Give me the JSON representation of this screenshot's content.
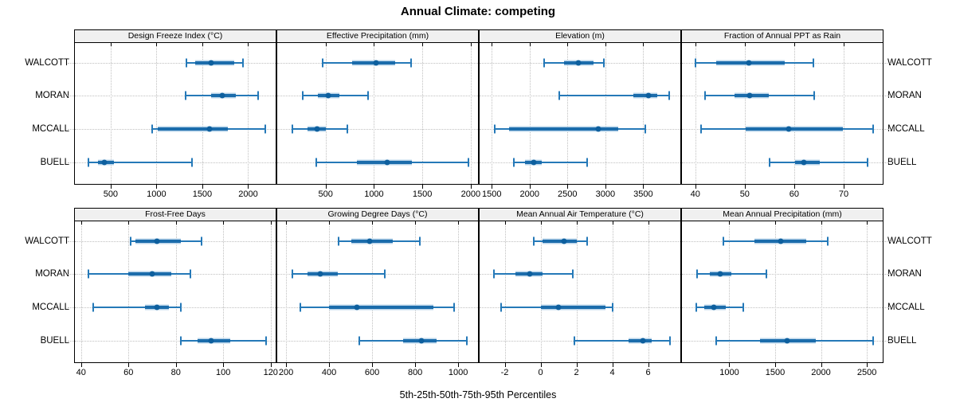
{
  "chart_data": {
    "type": "scatter",
    "subtype": "percentile-interval-dotplot",
    "title": "Annual Climate: competing",
    "caption": "5th-25th-50th-75th-95th Percentiles",
    "legend": "none",
    "grid": true,
    "accent_color": "#1f77b4",
    "sites": [
      "WALCOTT",
      "MORAN",
      "MCCALL",
      "BUELL"
    ],
    "percentiles": [
      5,
      25,
      50,
      75,
      95
    ],
    "panels": [
      {
        "title": "Design Freeze Index (°C)",
        "grid_row": 0,
        "grid_col": 0,
        "ticks": [
          500,
          1000,
          1500,
          2000
        ],
        "xlim": [
          110,
          2300
        ],
        "values": [
          [
            1325,
            1425,
            1595,
            1845,
            1940
          ],
          [
            1320,
            1595,
            1720,
            1865,
            2110
          ],
          [
            950,
            1010,
            1575,
            1775,
            2190
          ],
          [
            260,
            365,
            430,
            540,
            1385
          ]
        ]
      },
      {
        "title": "Effective Precipitation (mm)",
        "grid_row": 0,
        "grid_col": 1,
        "ticks": [
          500,
          1000,
          1500,
          2000
        ],
        "xlim": [
          0,
          2075
        ],
        "values": [
          [
            470,
            770,
            1025,
            1220,
            1380
          ],
          [
            260,
            420,
            530,
            640,
            940
          ],
          [
            155,
            310,
            410,
            500,
            725
          ],
          [
            400,
            820,
            1135,
            1390,
            1975
          ]
        ]
      },
      {
        "title": "Elevation (m)",
        "grid_row": 0,
        "grid_col": 2,
        "ticks": [
          1500,
          2000,
          2500,
          3000,
          3500
        ],
        "xlim": [
          1340,
          3990
        ],
        "values": [
          [
            2190,
            2455,
            2645,
            2840,
            2985
          ],
          [
            2390,
            3370,
            3565,
            3680,
            3845
          ],
          [
            1540,
            1730,
            2905,
            3175,
            3525
          ],
          [
            1790,
            1940,
            2060,
            2160,
            2760
          ]
        ]
      },
      {
        "title": "Fraction of Annual PPT as Rain",
        "grid_row": 0,
        "grid_col": 3,
        "ticks": [
          40,
          50,
          60,
          70
        ],
        "xlim": [
          37.3,
          77.9
        ],
        "values": [
          [
            40,
            44.2,
            50.8,
            58.1,
            63.9
          ],
          [
            42,
            48,
            51,
            54.9,
            64
          ],
          [
            41.1,
            50.2,
            58.9,
            69.9,
            75.9
          ],
          [
            55,
            60.1,
            62,
            65.1,
            74.9
          ]
        ]
      },
      {
        "title": "Frost-Free Days",
        "grid_row": 1,
        "grid_col": 0,
        "ticks": [
          40,
          60,
          80,
          100,
          120
        ],
        "xlim": [
          37.4,
          122.1
        ],
        "values": [
          [
            61,
            63,
            72,
            82,
            91
          ],
          [
            43,
            60,
            70,
            78,
            86
          ],
          [
            45,
            67,
            72,
            77,
            82
          ],
          [
            82,
            89,
            95,
            103,
            118
          ]
        ]
      },
      {
        "title": "Growing Degree Days (°C)",
        "grid_row": 1,
        "grid_col": 1,
        "ticks": [
          200,
          400,
          600,
          800,
          1000
        ],
        "xlim": [
          159,
          1092
        ],
        "values": [
          [
            445,
            505,
            590,
            695,
            820
          ],
          [
            230,
            300,
            360,
            440,
            660
          ],
          [
            265,
            400,
            530,
            885,
            980
          ],
          [
            540,
            745,
            830,
            900,
            1040
          ]
        ]
      },
      {
        "title": "Mean Annual Air Temperature (°C)",
        "grid_row": 1,
        "grid_col": 2,
        "ticks": [
          -2,
          0,
          2,
          4,
          6
        ],
        "xlim": [
          -3.4,
          7.8
        ],
        "values": [
          [
            -0.4,
            0.1,
            1.3,
            2.0,
            2.6
          ],
          [
            -2.6,
            -1.4,
            -0.6,
            0.1,
            1.8
          ],
          [
            -2.2,
            0.0,
            1.0,
            3.6,
            4.0
          ],
          [
            1.9,
            4.9,
            5.7,
            6.2,
            7.2
          ]
        ]
      },
      {
        "title": "Mean Annual Precipitation (mm)",
        "grid_row": 1,
        "grid_col": 3,
        "ticks": [
          1000,
          1500,
          2000,
          2500
        ],
        "xlim": [
          483,
          2673
        ],
        "values": [
          [
            935,
            1275,
            1560,
            1840,
            2075
          ],
          [
            645,
            785,
            900,
            1025,
            1400
          ],
          [
            640,
            725,
            830,
            965,
            1150
          ],
          [
            860,
            1335,
            1630,
            1940,
            2565
          ]
        ]
      }
    ]
  }
}
